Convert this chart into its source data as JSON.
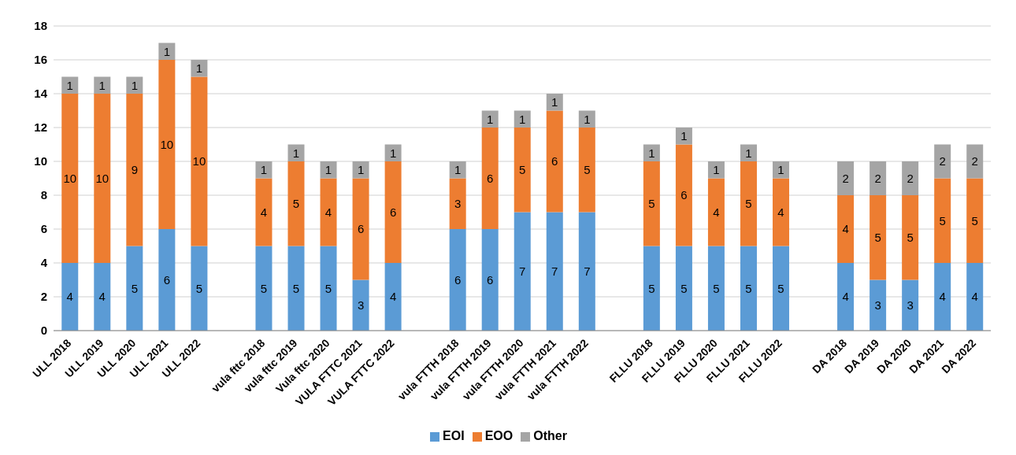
{
  "chart_data": {
    "type": "bar",
    "stacked": true,
    "categories": [
      "ULL 2018",
      "ULL 2019",
      "ULL 2020",
      "ULL 2021",
      "ULL 2022",
      null,
      "vula fttc 2018",
      "vula fttc 2019",
      "Vula fttc 2020",
      "VULA FTTC 2021",
      "VULA FTTC 2022",
      null,
      "vula FTTH 2018",
      "vula FTTH 2019",
      "vula FTTH 2020",
      "vula FTTH 2021",
      "vula FTTH 2022",
      null,
      "FLLU 2018",
      "FLLU 2019",
      "FLLU 2020",
      "FLLU 2021",
      "FLLU 2022",
      null,
      "DA 2018",
      "DA 2019",
      "DA 2020",
      "DA 2021",
      "DA 2022"
    ],
    "series": [
      {
        "name": "EOI",
        "color": "#5b9bd5",
        "values": [
          4,
          4,
          5,
          6,
          5,
          null,
          5,
          5,
          5,
          3,
          4,
          null,
          6,
          6,
          7,
          7,
          7,
          null,
          5,
          5,
          5,
          5,
          5,
          null,
          4,
          3,
          3,
          4,
          4
        ]
      },
      {
        "name": "EOO",
        "color": "#ed7d31",
        "values": [
          10,
          10,
          9,
          10,
          10,
          null,
          4,
          5,
          4,
          6,
          6,
          null,
          3,
          6,
          5,
          6,
          5,
          null,
          5,
          6,
          4,
          5,
          4,
          null,
          4,
          5,
          5,
          5,
          5
        ]
      },
      {
        "name": "Other",
        "color": "#a5a5a5",
        "values": [
          1,
          1,
          1,
          1,
          1,
          null,
          1,
          1,
          1,
          1,
          1,
          null,
          1,
          1,
          1,
          1,
          1,
          null,
          1,
          1,
          1,
          1,
          1,
          null,
          2,
          2,
          2,
          2,
          2
        ]
      }
    ],
    "ylim": [
      0,
      18
    ],
    "yticks": [
      0,
      2,
      4,
      6,
      8,
      10,
      12,
      14,
      16,
      18
    ],
    "grid": "y",
    "legend": "bottom",
    "data_labels": true
  }
}
